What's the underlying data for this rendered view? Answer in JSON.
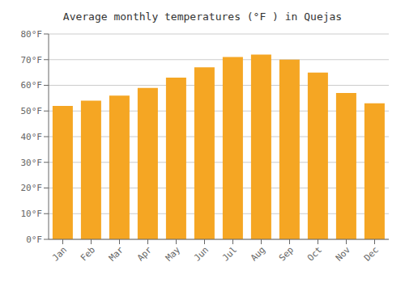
{
  "chart_data": {
    "type": "bar",
    "title": "Average monthly temperatures (°F ) in Quejas",
    "categories": [
      "Jan",
      "Feb",
      "Mar",
      "Apr",
      "May",
      "Jun",
      "Jul",
      "Aug",
      "Sep",
      "Oct",
      "Nov",
      "Dec"
    ],
    "values": [
      52,
      54,
      56,
      59,
      63,
      67,
      71,
      72,
      70,
      65,
      57,
      53
    ],
    "color": "#F5A623",
    "ylim": [
      0,
      80
    ],
    "yticks": [
      {
        "value": 0,
        "label": "0°F"
      },
      {
        "value": 10,
        "label": "10°F"
      },
      {
        "value": 20,
        "label": "20°F"
      },
      {
        "value": 30,
        "label": "30°F"
      },
      {
        "value": 40,
        "label": "40°F"
      },
      {
        "value": 50,
        "label": "50°F"
      },
      {
        "value": 60,
        "label": "60°F"
      },
      {
        "value": 70,
        "label": "70°F"
      },
      {
        "value": 80,
        "label": "80°F"
      }
    ],
    "grid": true
  }
}
